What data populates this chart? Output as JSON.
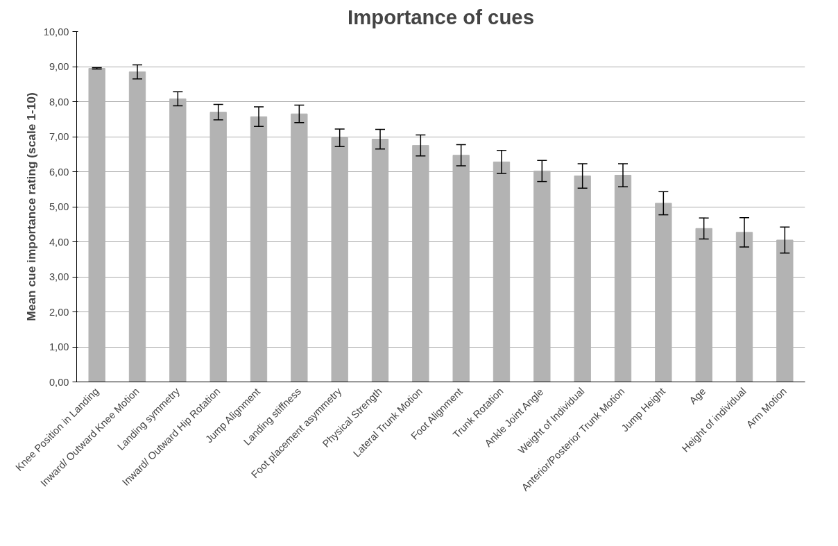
{
  "chart_data": {
    "type": "bar",
    "title": "Importance of cues",
    "ylabel": "Mean cue importance rating (scale 1-10)",
    "categories": [
      "Knee Position in Landing",
      "Inward/ Outward Knee Motion",
      "Landing symmetry",
      "Inward/ Outward Hip Rotation",
      "Jump Alignment",
      "Landing stiffness",
      "Foot placement asymmetry",
      "Physical Strength",
      "Lateral Trunk Motion",
      "Foot Alignment",
      "Trunk Rotation",
      "Ankle Joint Angle",
      "Weight of Individual",
      "Anterior/Posterior Trunk Motion",
      "Jump Height",
      "Age",
      "Height of individual",
      "Arm Motion"
    ],
    "values": [
      8.95,
      8.85,
      8.08,
      7.7,
      7.57,
      7.65,
      6.97,
      6.93,
      6.75,
      6.47,
      6.28,
      6.02,
      5.88,
      5.9,
      5.1,
      4.38,
      4.27,
      4.05
    ],
    "errors": [
      0.02,
      0.2,
      0.2,
      0.22,
      0.28,
      0.25,
      0.25,
      0.28,
      0.3,
      0.3,
      0.33,
      0.3,
      0.35,
      0.33,
      0.33,
      0.3,
      0.42,
      0.37
    ],
    "color": "#b3b3b3",
    "ylim": [
      0,
      10
    ],
    "yticks": [
      {
        "value": 0,
        "label": "0,00"
      },
      {
        "value": 1,
        "label": "1,00"
      },
      {
        "value": 2,
        "label": "2,00"
      },
      {
        "value": 3,
        "label": "3,00"
      },
      {
        "value": 4,
        "label": "4,00"
      },
      {
        "value": 5,
        "label": "5,00"
      },
      {
        "value": 6,
        "label": "6,00"
      },
      {
        "value": 7,
        "label": "7,00"
      },
      {
        "value": 8,
        "label": "8,00"
      },
      {
        "value": 9,
        "label": "9,00"
      },
      {
        "value": 10,
        "label": "10,00"
      }
    ],
    "grid": "y"
  }
}
